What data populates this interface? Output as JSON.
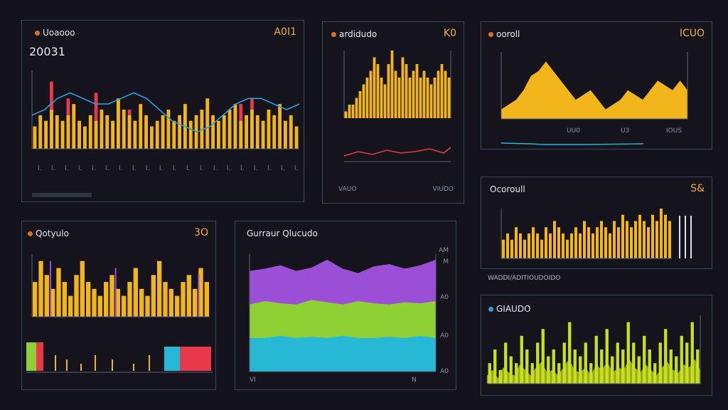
{
  "panels": {
    "p1": {
      "title": "Uoaooo",
      "value": "A0I1",
      "subtitle": "20031",
      "ticks": [
        "0",
        "0",
        "0"
      ]
    },
    "p2": {
      "title": "ardidudo",
      "value": "K0",
      "bottom_left": "VAUO",
      "bottom_right": "VIUDO"
    },
    "p3": {
      "title": "ooroll",
      "value": "ICUO",
      "ticks": [
        "UU0",
        "U3",
        "IOUS"
      ]
    },
    "p4": {
      "title": "Qotyulo",
      "value": "3O"
    },
    "p5": {
      "title": "Gurraur Qlucudo",
      "right_labels": [
        "AM",
        "M",
        "A0",
        "A0",
        "A0"
      ],
      "x_labels": [
        "VI",
        "N"
      ]
    },
    "p6": {
      "title": "Ocoroull",
      "value": "S&",
      "footer": "WADDI/ADITIOUDOIDO"
    },
    "p7": {
      "title": "GIAUDO"
    }
  },
  "colors": {
    "yellow": "#f2b51b",
    "red": "#e8384c",
    "purple": "#9b4fd6",
    "green": "#8fd035",
    "cyan": "#27b8d6",
    "blue": "#2aa0e0",
    "lime": "#c8e020"
  },
  "chart_data": [
    {
      "type": "bar",
      "title": "Uoaooo",
      "series": [
        {
          "values": [
            4,
            6,
            5,
            7,
            6,
            5,
            6,
            8,
            5,
            4,
            6,
            5,
            7,
            6,
            5,
            9,
            7,
            6,
            5,
            8,
            6,
            4,
            5,
            6,
            7,
            5,
            6,
            8,
            5,
            6,
            7,
            9,
            6,
            5,
            6,
            7,
            8,
            5,
            6,
            7,
            6,
            5,
            7,
            6,
            8,
            5,
            6,
            4
          ]
        },
        {
          "values": [
            2,
            1,
            0,
            12,
            0,
            0,
            9,
            0,
            0,
            0,
            0,
            10,
            0,
            0,
            0,
            0,
            0,
            7,
            0,
            0,
            0,
            0,
            0,
            0,
            0,
            0,
            0,
            0,
            0,
            0,
            0,
            0,
            0,
            0,
            0,
            0,
            0,
            8,
            0,
            9,
            0,
            0,
            0,
            0,
            0,
            0,
            0,
            0
          ]
        }
      ],
      "line": [
        6,
        7,
        9,
        10,
        9,
        8,
        8,
        9,
        10,
        9,
        7,
        5,
        4,
        3,
        4,
        6,
        8,
        9,
        9,
        8,
        7,
        8
      ]
    },
    {
      "type": "bar",
      "title": "ardidudo",
      "values": [
        1,
        2,
        2,
        3,
        4,
        5,
        6,
        7,
        9,
        8,
        6,
        5,
        8,
        10,
        7,
        6,
        9,
        8,
        6,
        7,
        8,
        6,
        7,
        6,
        5,
        6,
        7,
        8,
        7,
        6
      ]
    },
    {
      "type": "area",
      "title": "ooroll",
      "values": [
        1,
        1.5,
        2,
        3,
        4.5,
        5,
        6,
        5,
        4,
        3,
        2,
        2.5,
        3,
        2,
        1,
        1.5,
        2,
        3,
        2.5,
        2,
        3,
        4,
        3.5,
        3,
        4,
        3
      ]
    },
    {
      "type": "bar",
      "title": "Qotyulo",
      "values": [
        5,
        8,
        6,
        4,
        7,
        5,
        3,
        6,
        8,
        5,
        4,
        3,
        5,
        6,
        4,
        3,
        5,
        7,
        4,
        3,
        6,
        8,
        5,
        4,
        3,
        5,
        6,
        4,
        7,
        5
      ]
    },
    {
      "type": "area",
      "title": "Gurraur Qlucudo",
      "series": [
        {
          "values": [
            3,
            3,
            3.2,
            3,
            3.1,
            3,
            3.2,
            3,
            3,
            3.1,
            3,
            3.2,
            3
          ]
        },
        {
          "values": [
            6,
            6.3,
            6.1,
            6,
            6.4,
            6.2,
            6,
            6.3,
            6.1,
            6,
            6.2,
            6.1,
            6.3
          ]
        },
        {
          "values": [
            9,
            9.2,
            9.5,
            9,
            9.3,
            10,
            9.2,
            8.8,
            9.4,
            9.6,
            9.2,
            9.5,
            10
          ]
        }
      ]
    },
    {
      "type": "bar",
      "title": "Ocoroull",
      "values": [
        3,
        4,
        3,
        5,
        4,
        3,
        4,
        5,
        4,
        3,
        5,
        4,
        6,
        5,
        4,
        3,
        4,
        5,
        4,
        6,
        5,
        4,
        5,
        6,
        5,
        4,
        6,
        5,
        7,
        6,
        5,
        6,
        7,
        6,
        5,
        7,
        6,
        8,
        7,
        6
      ]
    },
    {
      "type": "bar",
      "title": "GIAUDO",
      "values": [
        3,
        5,
        2,
        6,
        4,
        3,
        7,
        5,
        3,
        6,
        8,
        4,
        5,
        3,
        6,
        9,
        5,
        4,
        6,
        3,
        7,
        5,
        8,
        4,
        6,
        5,
        9,
        6,
        4,
        7,
        5,
        3,
        6,
        8,
        5,
        4,
        7,
        6,
        9,
        5
      ]
    }
  ]
}
